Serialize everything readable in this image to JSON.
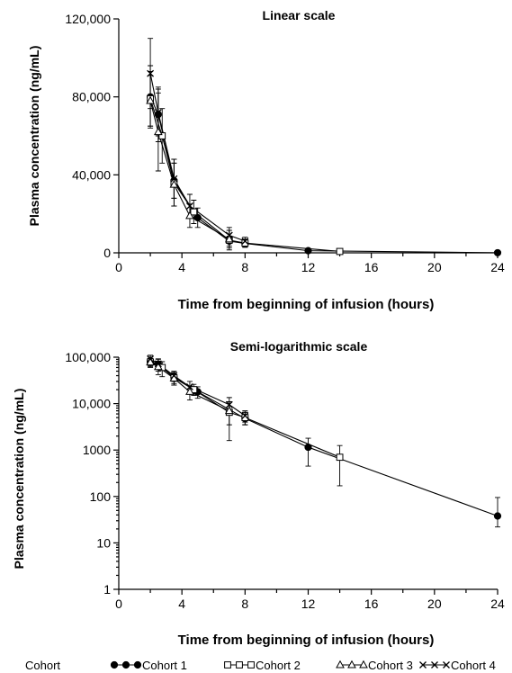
{
  "chart_data": [
    {
      "type": "line",
      "title": "Linear scale",
      "xlabel": "Time from beginning of infusion (hours)",
      "ylabel": "Plasma concentration (ng/mL)",
      "xlim": [
        0,
        24
      ],
      "ylim": [
        0,
        120000
      ],
      "yscale": "linear",
      "xticks": [
        0,
        4,
        8,
        12,
        16,
        20,
        24
      ],
      "xtick_labels": [
        "0",
        "4",
        "8",
        "12",
        "16",
        "20",
        "24"
      ],
      "yticks": [
        0,
        40000,
        80000,
        120000
      ],
      "ytick_labels": [
        "0",
        "40,000",
        "80,000",
        "120,000"
      ],
      "grid": false,
      "series": [
        {
          "name": "Cohort 1",
          "marker": "filled-circle",
          "x": [
            2,
            2.5,
            3.5,
            5,
            7,
            8,
            12,
            24
          ],
          "y": [
            80000,
            71000,
            37000,
            18000,
            6000,
            4800,
            1100,
            40
          ],
          "err": [
            16000,
            14000,
            9000,
            5000,
            2500,
            2000,
            700,
            60
          ]
        },
        {
          "name": "Cohort 2",
          "marker": "open-square",
          "x": [
            2,
            2.75,
            3.5,
            4.75,
            7,
            8,
            14
          ],
          "y": [
            79000,
            60000,
            36000,
            21000,
            6500,
            5000,
            700
          ],
          "err": [
            14000,
            14000,
            12000,
            6000,
            5000,
            2000,
            600
          ]
        },
        {
          "name": "Cohort 3",
          "marker": "open-triangle",
          "x": [
            2,
            2.5,
            3.5,
            4.5,
            7
          ],
          "y": [
            78000,
            62000,
            35000,
            19000,
            7000
          ],
          "err": [
            13000,
            20000,
            11000,
            6000,
            4500
          ]
        },
        {
          "name": "Cohort 4",
          "marker": "x-cross",
          "x": [
            2,
            2.5,
            3.5,
            4.5,
            7,
            8
          ],
          "y": [
            92000,
            72000,
            38000,
            24000,
            9000,
            6000
          ],
          "err": [
            18000,
            12000,
            10000,
            6000,
            4000,
            2000
          ]
        }
      ]
    },
    {
      "type": "line",
      "title": "Semi-logarithmic scale",
      "xlabel": "Time from beginning of infusion (hours)",
      "ylabel": "Plasma concentration (ng/mL)",
      "xlim": [
        0,
        24
      ],
      "ylim": [
        1,
        100000
      ],
      "yscale": "log",
      "xticks": [
        0,
        4,
        8,
        12,
        16,
        20,
        24
      ],
      "xtick_labels": [
        "0",
        "4",
        "8",
        "12",
        "16",
        "20",
        "24"
      ],
      "yticks": [
        1,
        10,
        100,
        1000,
        10000,
        100000
      ],
      "ytick_labels": [
        "1",
        "10",
        "100",
        "1000",
        "10,000",
        "100,000"
      ],
      "grid": false,
      "series": [
        {
          "name": "Cohort 1",
          "marker": "filled-circle",
          "x": [
            2,
            2.5,
            3.5,
            5,
            8,
            12,
            24
          ],
          "y": [
            80000,
            71000,
            37000,
            18000,
            4800,
            1150,
            38
          ],
          "elo": [
            60000,
            50000,
            27000,
            13000,
            3500,
            450,
            22
          ],
          "ehi": [
            100000,
            92000,
            47000,
            23000,
            6500,
            1800,
            95
          ]
        },
        {
          "name": "Cohort 2",
          "marker": "open-square",
          "x": [
            2,
            2.75,
            3.5,
            4.75,
            7,
            8,
            14
          ],
          "y": [
            79000,
            60000,
            36000,
            20000,
            6500,
            5000,
            700
          ],
          "elo": [
            65000,
            38000,
            25000,
            15000,
            1600,
            3500,
            170
          ],
          "ehi": [
            93000,
            80000,
            47000,
            26000,
            11000,
            6500,
            1250
          ]
        },
        {
          "name": "Cohort 3",
          "marker": "open-triangle",
          "x": [
            2,
            2.5,
            3.5,
            4.5,
            7
          ],
          "y": [
            78000,
            62000,
            35000,
            18000,
            7000
          ],
          "elo": [
            62000,
            42000,
            25000,
            12000,
            3500
          ],
          "ehi": [
            93000,
            82000,
            45000,
            24000,
            11000
          ]
        },
        {
          "name": "Cohort 4",
          "marker": "x-cross",
          "x": [
            2,
            2.5,
            3.5,
            4.5,
            7,
            8
          ],
          "y": [
            92000,
            72000,
            40000,
            23000,
            9500,
            5500
          ],
          "elo": [
            75000,
            55000,
            30000,
            16000,
            6500,
            4000
          ],
          "ehi": [
            110000,
            90000,
            50000,
            30000,
            13500,
            7000
          ]
        }
      ]
    }
  ],
  "legend": {
    "title": "Cohort",
    "items": [
      "Cohort 1",
      "Cohort 2",
      "Cohort 3",
      "Cohort 4"
    ]
  }
}
